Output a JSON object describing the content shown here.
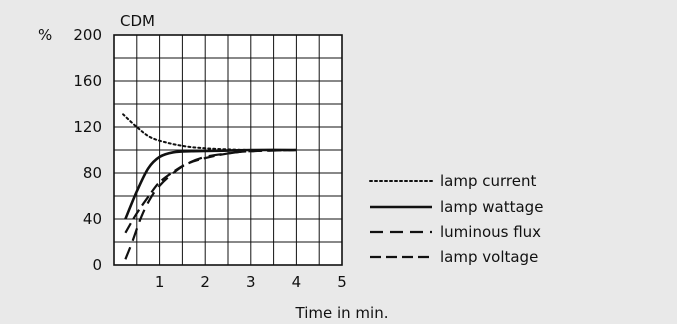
{
  "chart_data": {
    "type": "line",
    "title": "CDM",
    "ylabel": "%",
    "xlabel": "Time in min.",
    "xlim": [
      0,
      5
    ],
    "ylim": [
      0,
      200
    ],
    "x_ticks": [
      1,
      2,
      3,
      4,
      5
    ],
    "y_ticks": [
      0,
      40,
      80,
      120,
      160,
      200
    ],
    "grid": true,
    "legend_placement": "right",
    "colors": {
      "line": "#111111",
      "grid": "#111111",
      "background": "#e9e9e9",
      "plot_background": "#ffffff"
    },
    "series": [
      {
        "name": "lamp current",
        "dash": "dotted",
        "width": 2,
        "points": [
          [
            0.2,
            131
          ],
          [
            0.5,
            120
          ],
          [
            0.8,
            111
          ],
          [
            1.2,
            106
          ],
          [
            1.6,
            103
          ],
          [
            2.0,
            101.5
          ],
          [
            2.5,
            100.5
          ],
          [
            3.0,
            100
          ],
          [
            4.0,
            100
          ]
        ]
      },
      {
        "name": "lamp wattage",
        "dash": "solid",
        "width": 2.6,
        "points": [
          [
            0.25,
            40
          ],
          [
            0.5,
            64
          ],
          [
            0.75,
            84
          ],
          [
            1.0,
            94
          ],
          [
            1.3,
            98
          ],
          [
            1.7,
            99
          ],
          [
            2.5,
            99.5
          ],
          [
            3.0,
            100
          ],
          [
            4.0,
            100
          ]
        ]
      },
      {
        "name": "luminous flux",
        "dash": "long-dash",
        "width": 2.2,
        "points": [
          [
            0.25,
            5
          ],
          [
            0.4,
            20
          ],
          [
            0.6,
            42
          ],
          [
            0.8,
            58
          ],
          [
            1.0,
            69
          ],
          [
            1.3,
            80
          ],
          [
            1.6,
            88
          ],
          [
            2.0,
            94
          ],
          [
            2.5,
            97
          ],
          [
            3.0,
            99
          ],
          [
            4.0,
            100
          ]
        ]
      },
      {
        "name": "lamp voltage",
        "dash": "dash",
        "width": 2.2,
        "points": [
          [
            0.25,
            28
          ],
          [
            0.5,
            45
          ],
          [
            0.8,
            62
          ],
          [
            1.0,
            72
          ],
          [
            1.3,
            81
          ],
          [
            1.6,
            88
          ],
          [
            2.0,
            93
          ],
          [
            2.5,
            97
          ],
          [
            3.0,
            99
          ],
          [
            4.0,
            100
          ]
        ]
      }
    ]
  }
}
